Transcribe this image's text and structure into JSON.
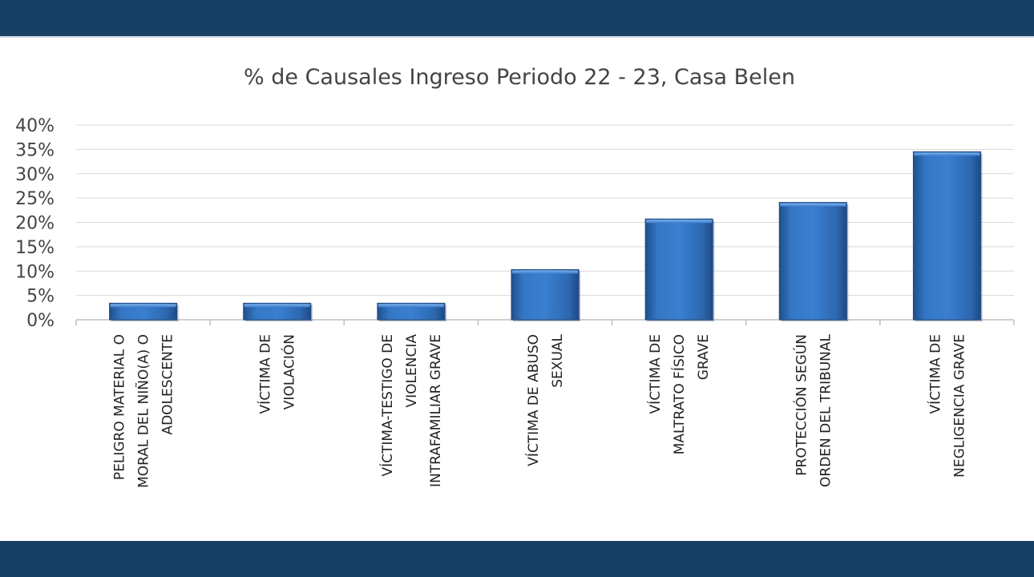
{
  "chart_data": {
    "type": "bar",
    "title": "% de Causales Ingreso Periodo 22 - 23, Casa Belen",
    "categories": [
      [
        "PELIGRO MATERIAL O",
        "MORAL DEL NIÑO(A) O",
        "ADOLESCENTE"
      ],
      [
        "VÍCTIMA DE",
        "VIOLACIÓN"
      ],
      [
        "VÍCTIMA-TESTIGO DE",
        "VIOLENCIA",
        "INTRAFAMILIAR GRAVE"
      ],
      [
        "VÍCTIMA DE ABUSO",
        "SEXUAL"
      ],
      [
        "VÍCTIMA DE",
        "MALTRATO FÍSICO",
        "GRAVE"
      ],
      [
        "PROTECCIÓN SEGÚN",
        "ORDEN DEL TRIBUNAL"
      ],
      [
        "VÍCTIMA DE",
        "NEGLIGENCIA GRAVE"
      ]
    ],
    "values": [
      3.4,
      3.4,
      3.4,
      10.3,
      20.7,
      24.1,
      34.5
    ],
    "ylim": [
      0,
      40
    ],
    "yticks": [
      "0%",
      "5%",
      "10%",
      "15%",
      "20%",
      "25%",
      "30%",
      "35%",
      "40%"
    ],
    "grid": true,
    "bar_color": "#2f6db5",
    "xlabel": "",
    "ylabel": ""
  },
  "theme": {
    "band_color": "#173e64"
  }
}
